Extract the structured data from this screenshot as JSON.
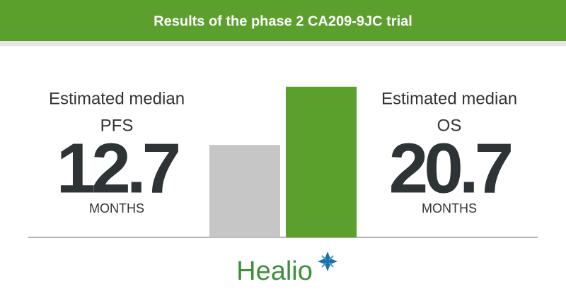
{
  "header": {
    "title": "Results of the phase 2 CA209-9JC trial"
  },
  "stats": [
    {
      "label": "Estimated median",
      "metric": "PFS",
      "value": 12.7,
      "unit": "MONTHS",
      "color": "#c6c6c6"
    },
    {
      "label": "Estimated median",
      "metric": "OS",
      "value": 20.7,
      "unit": "MONTHS",
      "color": "#5b9f2c"
    }
  ],
  "logo": "Healio"
}
